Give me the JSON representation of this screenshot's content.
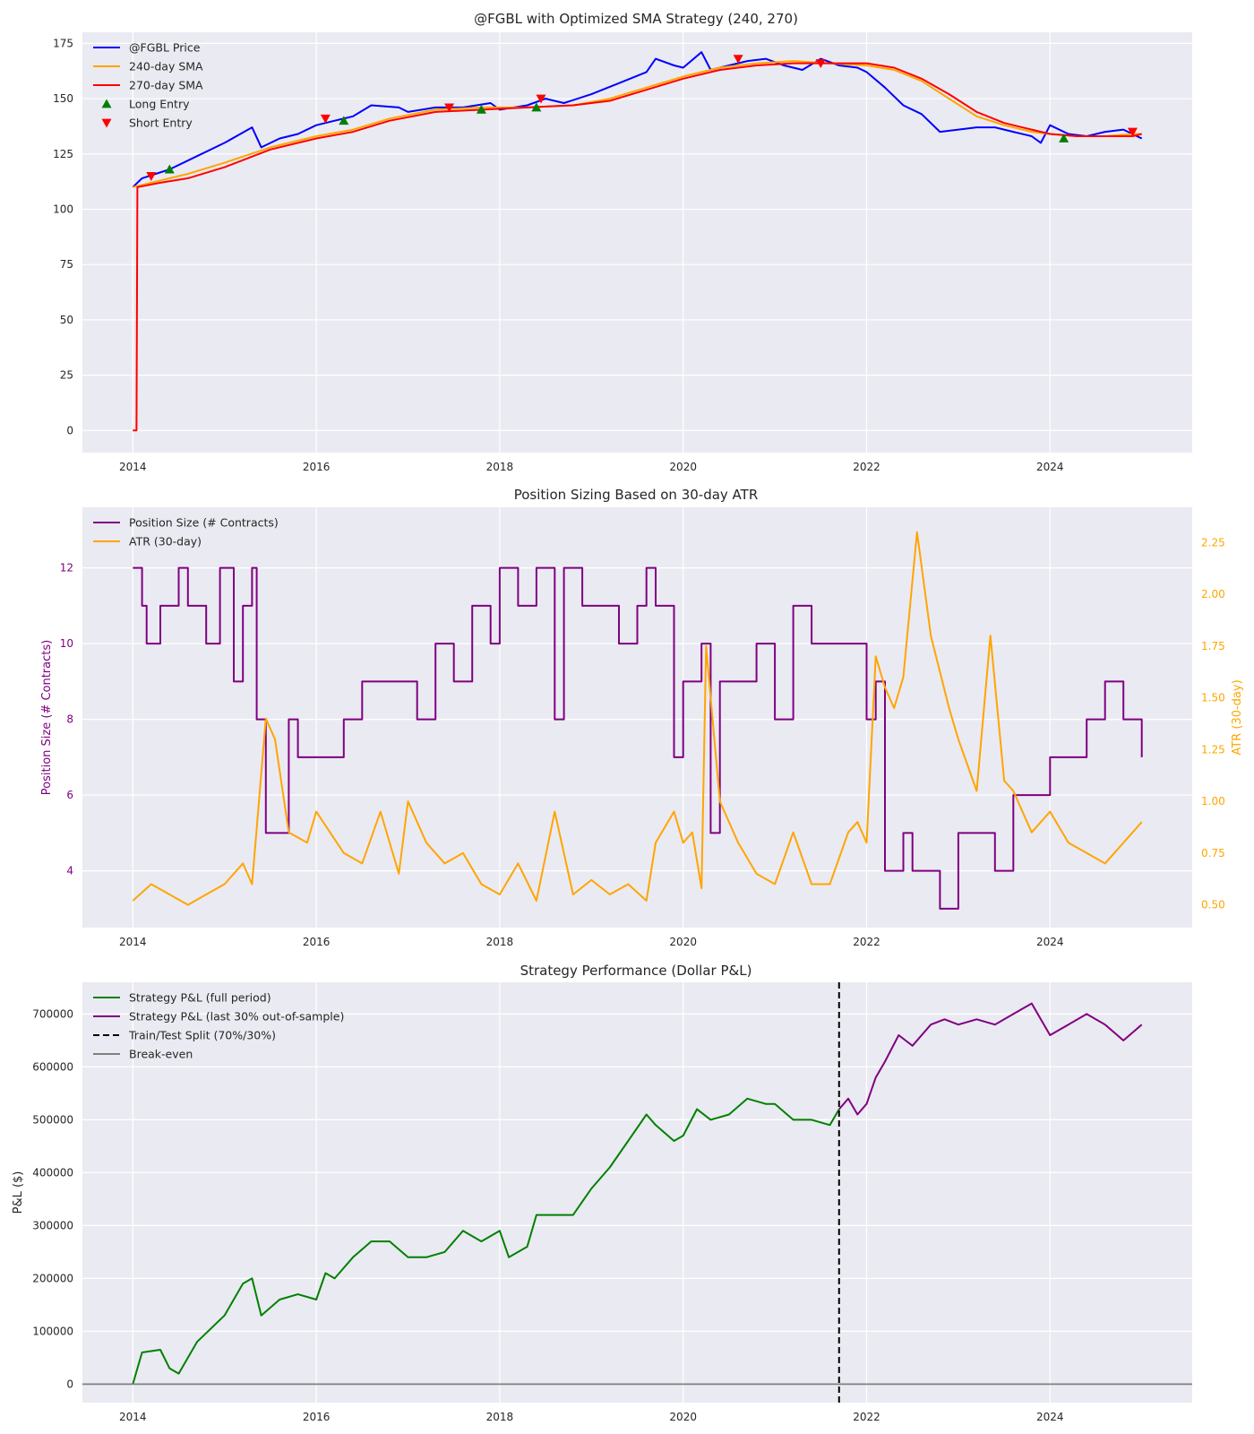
{
  "chart_data": [
    {
      "type": "line",
      "title": "@FGBL with Optimized SMA Strategy (240, 270)",
      "xlabel": "",
      "ylabel": "",
      "xlim": [
        2013.45,
        2025.55
      ],
      "ylim": [
        -10,
        180
      ],
      "x_ticks": [
        "2014",
        "2016",
        "2018",
        "2020",
        "2022",
        "2024"
      ],
      "y_ticks": [
        "0",
        "25",
        "50",
        "75",
        "100",
        "125",
        "150",
        "175"
      ],
      "legend": [
        "@FGBL Price",
        "240-day SMA",
        "270-day SMA",
        "Long Entry",
        "Short Entry"
      ],
      "legend_position": "upper-left",
      "grid": true,
      "series": [
        {
          "name": "@FGBL Price",
          "color": "#0000ff",
          "x": [
            2014.0,
            2014.1,
            2014.4,
            2014.7,
            2015.0,
            2015.3,
            2015.4,
            2015.6,
            2015.8,
            2016.0,
            2016.2,
            2016.4,
            2016.6,
            2016.9,
            2017.0,
            2017.3,
            2017.6,
            2017.9,
            2018.0,
            2018.3,
            2018.5,
            2018.7,
            2019.0,
            2019.3,
            2019.6,
            2019.7,
            2019.9,
            2020.0,
            2020.2,
            2020.3,
            2020.5,
            2020.7,
            2020.9,
            2021.1,
            2021.3,
            2021.5,
            2021.7,
            2021.9,
            2022.0,
            2022.2,
            2022.4,
            2022.6,
            2022.8,
            2023.0,
            2023.2,
            2023.4,
            2023.6,
            2023.8,
            2023.9,
            2024.0,
            2024.2,
            2024.4,
            2024.6,
            2024.8,
            2025.0
          ],
          "values": [
            110,
            114,
            118,
            124,
            130,
            137,
            128,
            132,
            134,
            138,
            140,
            142,
            147,
            146,
            144,
            146,
            146,
            148,
            145,
            147,
            150,
            148,
            152,
            157,
            162,
            168,
            165,
            164,
            171,
            163,
            165,
            167,
            168,
            165,
            163,
            168,
            165,
            164,
            162,
            155,
            147,
            143,
            135,
            136,
            137,
            137,
            135,
            133,
            130,
            138,
            134,
            133,
            135,
            136,
            132
          ]
        },
        {
          "name": "240-day SMA",
          "color": "#ffa500",
          "x": [
            2014.0,
            2014.3,
            2014.6,
            2015.0,
            2015.5,
            2016.0,
            2016.4,
            2016.8,
            2017.3,
            2017.8,
            2018.3,
            2018.8,
            2019.2,
            2019.6,
            2020.0,
            2020.4,
            2020.8,
            2021.2,
            2021.6,
            2022.0,
            2022.3,
            2022.6,
            2022.9,
            2023.2,
            2023.5,
            2023.8,
            2024.0,
            2024.3,
            2024.6,
            2024.9,
            2025.0
          ],
          "values": [
            110,
            113,
            116,
            121,
            128,
            133,
            136,
            141,
            145,
            146,
            146,
            147,
            150,
            155,
            160,
            164,
            166,
            167,
            166,
            165,
            163,
            158,
            150,
            142,
            138,
            135,
            134,
            133,
            133,
            134,
            134
          ]
        },
        {
          "name": "270-day SMA",
          "color": "#ff0000",
          "x": [
            2014.0,
            2014.01,
            2014.02,
            2014.04,
            2014.05,
            2014.3,
            2014.6,
            2015.0,
            2015.5,
            2016.0,
            2016.4,
            2016.8,
            2017.3,
            2017.8,
            2018.3,
            2018.8,
            2019.2,
            2019.6,
            2020.0,
            2020.4,
            2020.8,
            2021.2,
            2021.6,
            2022.0,
            2022.3,
            2022.6,
            2022.9,
            2023.2,
            2023.5,
            2023.8,
            2024.0,
            2024.3,
            2024.6,
            2024.9,
            2025.0
          ],
          "values": [
            0,
            0,
            0,
            0,
            110,
            112,
            114,
            119,
            127,
            132,
            135,
            140,
            144,
            145,
            146,
            147,
            149,
            154,
            159,
            163,
            165,
            166,
            166,
            166,
            164,
            159,
            152,
            144,
            139,
            136,
            134,
            133,
            133,
            133,
            134
          ]
        }
      ],
      "markers": [
        {
          "name": "Long Entry",
          "color": "#008000",
          "shape": "triangle-up",
          "points": [
            [
              2014.4,
              118
            ],
            [
              2016.3,
              140
            ],
            [
              2017.8,
              145
            ],
            [
              2018.4,
              146
            ],
            [
              2024.15,
              132
            ]
          ]
        },
        {
          "name": "Short Entry",
          "color": "#ff0000",
          "shape": "triangle-down",
          "points": [
            [
              2014.2,
              115
            ],
            [
              2016.1,
              141
            ],
            [
              2017.45,
              146
            ],
            [
              2018.45,
              150
            ],
            [
              2020.6,
              168
            ],
            [
              2021.5,
              166
            ],
            [
              2024.9,
              135
            ]
          ]
        }
      ]
    },
    {
      "type": "line",
      "title": "Position Sizing Based on 30-day ATR",
      "xlabel": "",
      "ylabel": "Position Size (# Contracts)",
      "ylabel_right": "ATR (30-day)",
      "xlim": [
        2013.45,
        2025.55
      ],
      "ylim": [
        2.5,
        13.6
      ],
      "ylim_right": [
        0.39,
        2.42
      ],
      "x_ticks": [
        "2014",
        "2016",
        "2018",
        "2020",
        "2022",
        "2024"
      ],
      "y_ticks": [
        "4",
        "6",
        "8",
        "10",
        "12"
      ],
      "y_ticks_right": [
        "0.50",
        "0.75",
        "1.00",
        "1.25",
        "1.50",
        "1.75",
        "2.00",
        "2.25"
      ],
      "legend": [
        "Position Size (# Contracts)",
        "ATR (30-day)"
      ],
      "legend_position": "upper-left",
      "grid": true,
      "series": [
        {
          "name": "Position Size (# Contracts)",
          "color": "#800080",
          "axis": "left",
          "step": true,
          "x": [
            2014.0,
            2014.1,
            2014.15,
            2014.3,
            2014.5,
            2014.6,
            2014.8,
            2014.95,
            2015.1,
            2015.2,
            2015.3,
            2015.35,
            2015.45,
            2015.7,
            2015.8,
            2016.0,
            2016.3,
            2016.5,
            2016.6,
            2016.9,
            2017.1,
            2017.3,
            2017.5,
            2017.7,
            2017.9,
            2018.0,
            2018.2,
            2018.3,
            2018.4,
            2018.5,
            2018.6,
            2018.7,
            2018.9,
            2019.0,
            2019.3,
            2019.5,
            2019.6,
            2019.7,
            2019.9,
            2020.0,
            2020.1,
            2020.2,
            2020.3,
            2020.4,
            2020.6,
            2020.7,
            2020.8,
            2020.9,
            2021.0,
            2021.2,
            2021.4,
            2021.5,
            2021.7,
            2021.8,
            2022.0,
            2022.1,
            2022.2,
            2022.4,
            2022.5,
            2022.8,
            2023.0,
            2023.2,
            2023.4,
            2023.6,
            2023.7,
            2023.9,
            2024.0,
            2024.2,
            2024.4,
            2024.5,
            2024.6,
            2024.8,
            2025.0
          ],
          "values": [
            12,
            11,
            10,
            11,
            12,
            11,
            10,
            12,
            9,
            11,
            12,
            8,
            5,
            8,
            7,
            7,
            8,
            9,
            9,
            9,
            8,
            10,
            9,
            11,
            10,
            12,
            11,
            11,
            12,
            12,
            8,
            12,
            11,
            11,
            10,
            11,
            12,
            11,
            7,
            9,
            9,
            10,
            5,
            9,
            9,
            9,
            10,
            10,
            8,
            11,
            10,
            10,
            10,
            10,
            8,
            9,
            4,
            5,
            4,
            3,
            5,
            5,
            4,
            6,
            6,
            6,
            7,
            7,
            8,
            8,
            9,
            8,
            7
          ]
        },
        {
          "name": "ATR (30-day)",
          "color": "#ffa500",
          "axis": "right",
          "x": [
            2014.0,
            2014.2,
            2014.4,
            2014.6,
            2014.8,
            2015.0,
            2015.2,
            2015.3,
            2015.45,
            2015.55,
            2015.7,
            2015.9,
            2016.0,
            2016.3,
            2016.5,
            2016.7,
            2016.9,
            2017.0,
            2017.2,
            2017.4,
            2017.6,
            2017.8,
            2018.0,
            2018.2,
            2018.4,
            2018.6,
            2018.8,
            2019.0,
            2019.2,
            2019.4,
            2019.6,
            2019.7,
            2019.9,
            2020.0,
            2020.1,
            2020.2,
            2020.25,
            2020.4,
            2020.6,
            2020.8,
            2021.0,
            2021.2,
            2021.4,
            2021.6,
            2021.8,
            2021.9,
            2022.0,
            2022.1,
            2022.2,
            2022.3,
            2022.4,
            2022.55,
            2022.7,
            2022.9,
            2023.0,
            2023.2,
            2023.35,
            2023.5,
            2023.6,
            2023.8,
            2024.0,
            2024.2,
            2024.4,
            2024.6,
            2024.8,
            2025.0
          ],
          "values": [
            0.52,
            0.6,
            0.55,
            0.5,
            0.55,
            0.6,
            0.7,
            0.6,
            1.4,
            1.3,
            0.85,
            0.8,
            0.95,
            0.75,
            0.7,
            0.95,
            0.65,
            1.0,
            0.8,
            0.7,
            0.75,
            0.6,
            0.55,
            0.7,
            0.52,
            0.95,
            0.55,
            0.62,
            0.55,
            0.6,
            0.52,
            0.8,
            0.95,
            0.8,
            0.85,
            0.58,
            1.75,
            1.0,
            0.8,
            0.65,
            0.6,
            0.85,
            0.6,
            0.6,
            0.85,
            0.9,
            0.8,
            1.7,
            1.55,
            1.45,
            1.6,
            2.3,
            1.8,
            1.45,
            1.3,
            1.05,
            1.8,
            1.1,
            1.05,
            0.85,
            0.95,
            0.8,
            0.75,
            0.7,
            0.8,
            0.9
          ]
        }
      ]
    },
    {
      "type": "line",
      "title": "Strategy Performance (Dollar P&L)",
      "xlabel": "",
      "ylabel": "P&L ($)",
      "xlim": [
        2013.45,
        2025.55
      ],
      "ylim": [
        -35000,
        760000
      ],
      "x_ticks": [
        "2014",
        "2016",
        "2018",
        "2020",
        "2022",
        "2024"
      ],
      "y_ticks": [
        "0",
        "100000",
        "200000",
        "300000",
        "400000",
        "500000",
        "600000",
        "700000"
      ],
      "legend": [
        "Strategy P&L (full period)",
        "Strategy P&L (last 30% out-of-sample)",
        "Train/Test Split (70%/30%)",
        "Break-even"
      ],
      "legend_position": "upper-left",
      "grid": true,
      "split_x": 2021.7,
      "series": [
        {
          "name": "Strategy P&L (full period)",
          "color": "#008000",
          "x": [
            2014.0,
            2014.1,
            2014.3,
            2014.4,
            2014.5,
            2014.7,
            2015.0,
            2015.2,
            2015.3,
            2015.4,
            2015.6,
            2015.8,
            2016.0,
            2016.1,
            2016.2,
            2016.4,
            2016.6,
            2016.8,
            2017.0,
            2017.2,
            2017.4,
            2017.6,
            2017.8,
            2018.0,
            2018.1,
            2018.3,
            2018.4,
            2018.6,
            2018.8,
            2019.0,
            2019.2,
            2019.4,
            2019.6,
            2019.7,
            2019.9,
            2020.0,
            2020.15,
            2020.3,
            2020.5,
            2020.7,
            2020.9,
            2021.0,
            2021.2,
            2021.4,
            2021.6,
            2021.7
          ],
          "values": [
            0,
            60000,
            65000,
            30000,
            20000,
            80000,
            130000,
            190000,
            200000,
            130000,
            160000,
            170000,
            160000,
            210000,
            200000,
            240000,
            270000,
            270000,
            240000,
            240000,
            250000,
            290000,
            270000,
            290000,
            240000,
            260000,
            320000,
            320000,
            320000,
            370000,
            410000,
            460000,
            510000,
            490000,
            460000,
            470000,
            520000,
            500000,
            510000,
            540000,
            530000,
            530000,
            500000,
            500000,
            490000,
            520000
          ]
        },
        {
          "name": "Strategy P&L (last 30% out-of-sample)",
          "color": "#800080",
          "x": [
            2021.7,
            2021.8,
            2021.9,
            2022.0,
            2022.1,
            2022.2,
            2022.35,
            2022.5,
            2022.7,
            2022.85,
            2023.0,
            2023.2,
            2023.4,
            2023.6,
            2023.8,
            2023.9,
            2024.0,
            2024.2,
            2024.4,
            2024.6,
            2024.8,
            2025.0
          ],
          "values": [
            520000,
            540000,
            510000,
            530000,
            580000,
            610000,
            660000,
            640000,
            680000,
            690000,
            680000,
            690000,
            680000,
            700000,
            720000,
            690000,
            660000,
            680000,
            700000,
            680000,
            650000,
            680000
          ]
        },
        {
          "name": "Break-even",
          "color": "#808080",
          "x": [
            2013.45,
            2025.55
          ],
          "values": [
            0,
            0
          ]
        }
      ]
    }
  ]
}
